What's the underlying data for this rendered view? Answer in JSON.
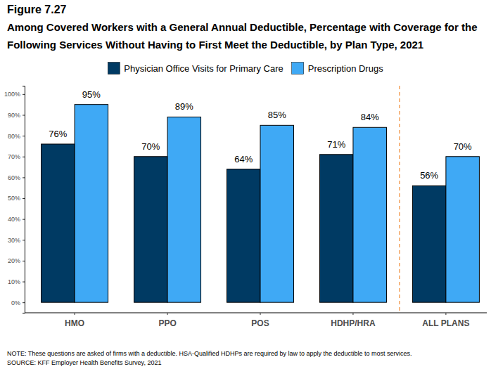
{
  "chart_data": {
    "type": "bar",
    "title": "Figure 7.27",
    "subtitle": [
      "Among Covered Workers with a General Annual Deductible, Percentage with Coverage for the",
      "Following Services Without Having to First Meet the Deductible, by Plan Type, 2021"
    ],
    "categories": [
      "HMO",
      "PPO",
      "POS",
      "HDHP/HRA",
      "ALL PLANS"
    ],
    "series": [
      {
        "name": "Physician Office Visits for Primary Care",
        "color": "#003a63",
        "values": [
          76,
          70,
          64,
          71,
          56
        ],
        "value_labels": [
          "76%",
          "70%",
          "64%",
          "71%",
          "56%"
        ]
      },
      {
        "name": "Prescription Drugs",
        "color": "#3fa9f5",
        "values": [
          95,
          89,
          85,
          84,
          70
        ],
        "value_labels": [
          "95%",
          "89%",
          "85%",
          "84%",
          "70%"
        ]
      }
    ],
    "ylim": [
      -5,
      104
    ],
    "yticks": [
      {
        "value": 0,
        "label": "0%"
      },
      {
        "value": 10,
        "label": "10%"
      },
      {
        "value": 20,
        "label": "20%"
      },
      {
        "value": 30,
        "label": "30%"
      },
      {
        "value": 40,
        "label": "40%"
      },
      {
        "value": 50,
        "label": "50%"
      },
      {
        "value": 60,
        "label": "60%"
      },
      {
        "value": 70,
        "label": "70%"
      },
      {
        "value": 80,
        "label": "80%"
      },
      {
        "value": 90,
        "label": "90%"
      },
      {
        "value": 100,
        "label": "100%"
      }
    ],
    "grid": false,
    "legend": "top",
    "data_labels": true,
    "annotations": [
      "NOTE: These questions are asked of firms with a deductible. HSA-Qualified HDHPs are required by law to apply the deductible to most services.",
      "SOURCE: KFF Employer Health Benefits Survey, 2021"
    ]
  }
}
